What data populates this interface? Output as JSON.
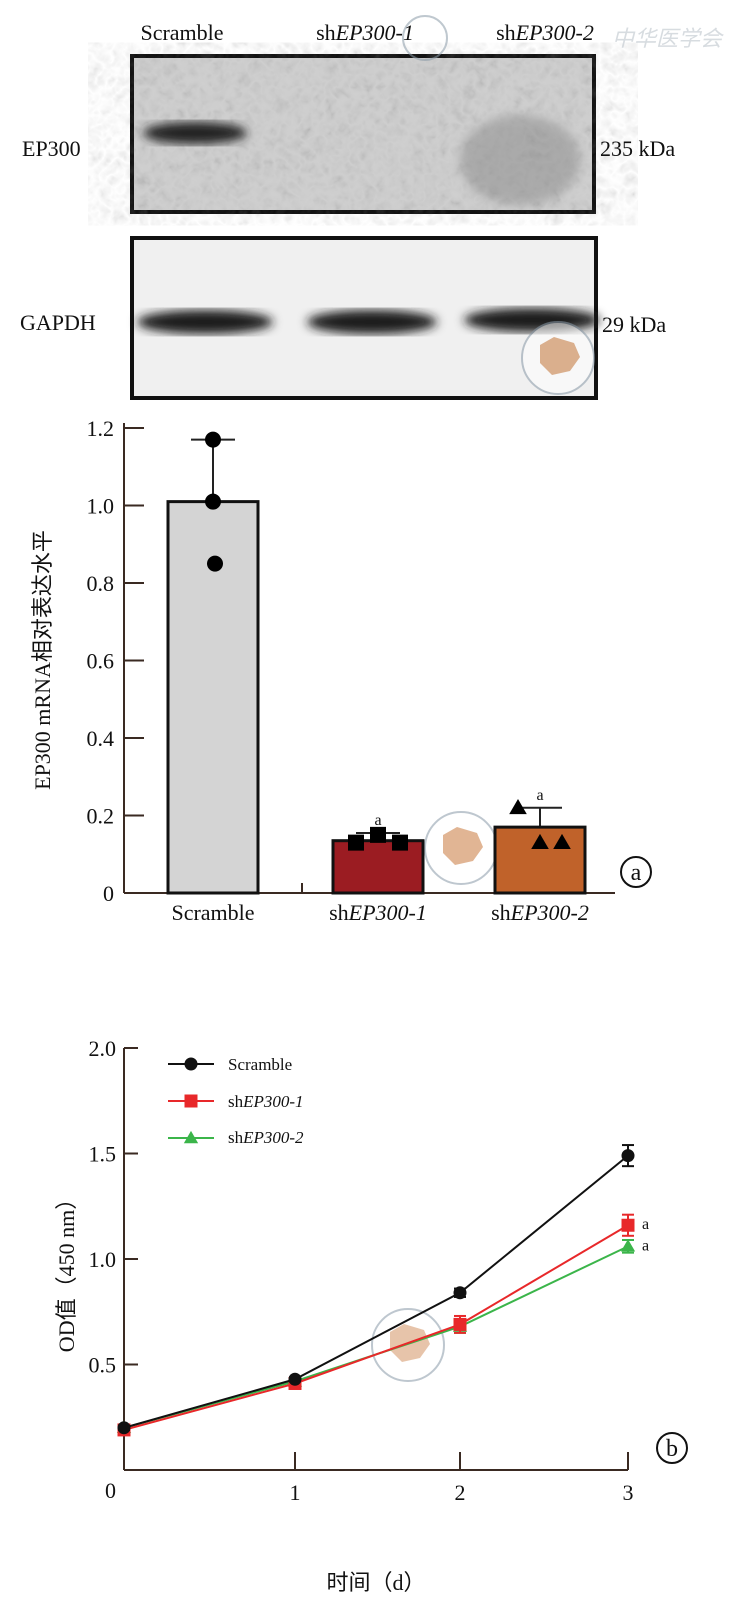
{
  "blot": {
    "lanes": [
      {
        "prefix": "Scramble",
        "italic": ""
      },
      {
        "prefix": "sh",
        "italic": "EP300-1"
      },
      {
        "prefix": "sh",
        "italic": "EP300-2"
      }
    ],
    "rows": [
      {
        "label": "EP300",
        "size": "235 kDa",
        "band_intensity": [
          1,
          0,
          0
        ]
      },
      {
        "label": "GAPDH",
        "size": "29 kDa",
        "band_intensity": [
          1,
          1,
          1
        ]
      }
    ]
  },
  "watermark_text": "中华医学会",
  "chart_data": [
    {
      "type": "bar",
      "panel_label": "a",
      "ylabel": "EP300 mRNA相对表达水平",
      "ylim": [
        0,
        1.2
      ],
      "yticks": [
        "0",
        "0.2",
        "0.4",
        "0.6",
        "0.8",
        "1.0",
        "1.2"
      ],
      "categories": [
        {
          "prefix": "Scramble",
          "italic": ""
        },
        {
          "prefix": "sh",
          "italic": "EP300-1"
        },
        {
          "prefix": "sh",
          "italic": "EP300-2"
        }
      ],
      "values": [
        1.01,
        0.135,
        0.17
      ],
      "error_upper": [
        1.17,
        0.155,
        0.22
      ],
      "points": [
        [
          1.17,
          1.01,
          0.85
        ],
        [
          0.13,
          0.15,
          0.13
        ],
        [
          0.22,
          0.13,
          0.13
        ]
      ],
      "markers": [
        "circle",
        "square",
        "triangle"
      ],
      "colors": [
        "#d4d4d4",
        "#9b1c22",
        "#c0622a"
      ],
      "annotations": [
        "",
        "a",
        "a"
      ]
    },
    {
      "type": "line",
      "panel_label": "b",
      "xlabel": "时间（d）",
      "ylabel": "OD值（450 nm）",
      "x": [
        0,
        1,
        2,
        3
      ],
      "xticks": [
        "0",
        "1",
        "2",
        "3"
      ],
      "ylim": [
        0,
        2.0
      ],
      "yticks": [
        "0",
        "0.5",
        "1.0",
        "1.5",
        "2.0"
      ],
      "legend_position": "top-left",
      "series": [
        {
          "name": {
            "prefix": "Scramble",
            "italic": ""
          },
          "values": [
            0.2,
            0.43,
            0.84,
            1.49
          ],
          "errors": [
            0.01,
            0.01,
            0.02,
            0.05
          ],
          "color": "#111111",
          "marker": "circle",
          "annotation": ""
        },
        {
          "name": {
            "prefix": "sh",
            "italic": "EP300-1"
          },
          "values": [
            0.19,
            0.41,
            0.69,
            1.16
          ],
          "errors": [
            0.01,
            0.01,
            0.04,
            0.05
          ],
          "color": "#e8282a",
          "marker": "square",
          "annotation": "a"
        },
        {
          "name": {
            "prefix": "sh",
            "italic": "EP300-2"
          },
          "values": [
            0.2,
            0.42,
            0.68,
            1.06
          ],
          "errors": [
            0.01,
            0.01,
            0.03,
            0.03
          ],
          "color": "#3bb54a",
          "marker": "triangle",
          "annotation": "a"
        }
      ]
    }
  ]
}
